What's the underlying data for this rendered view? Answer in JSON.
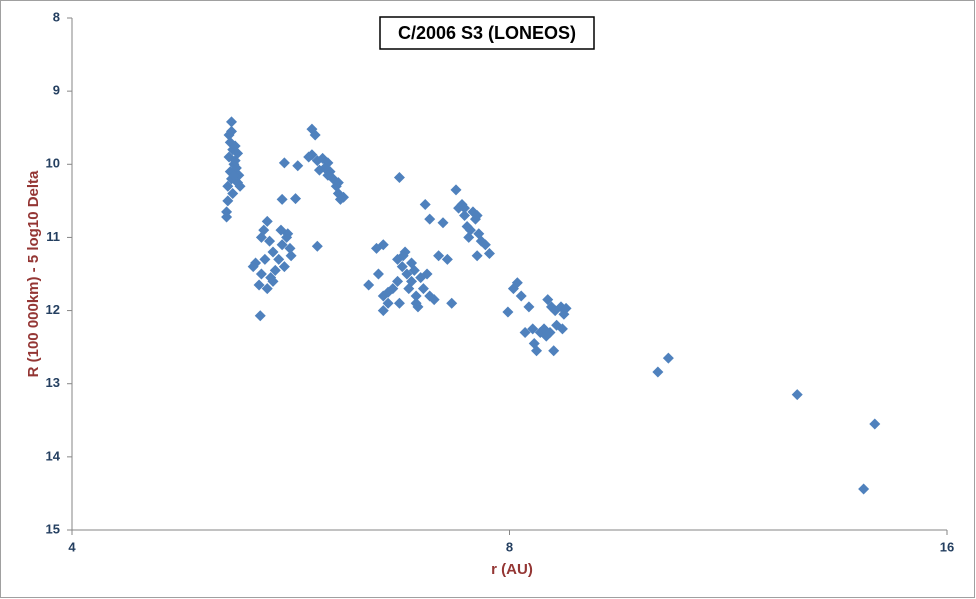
{
  "chart_data": {
    "type": "scatter",
    "title": "C/2006 S3 (LONEOS)",
    "x_label": "r (AU)",
    "y_label": "R (100 000km) - 5 log10 Delta",
    "xscale": "log",
    "xlim": [
      4,
      16
    ],
    "xticks": [
      4,
      8,
      16
    ],
    "ylim": [
      8,
      15
    ],
    "yticks": [
      8,
      9,
      10,
      11,
      12,
      13,
      14,
      15
    ],
    "y_inverted": true,
    "grid": false,
    "color": "#4f81bd",
    "x": [
      5.15,
      5.15,
      5.14,
      5.16,
      5.13,
      5.17,
      5.14,
      5.15,
      5.12,
      5.16,
      5.12,
      5.11,
      5.11,
      5.18,
      5.2,
      5.19,
      5.21,
      5.2,
      5.22,
      5.18,
      5.17,
      5.13,
      5.45,
      5.42,
      5.4,
      5.47,
      5.5,
      5.35,
      5.33,
      5.4,
      5.38,
      5.45,
      5.5,
      5.55,
      5.58,
      5.62,
      5.65,
      5.6,
      5.52,
      5.43,
      5.39,
      5.48,
      5.63,
      5.66,
      5.57,
      5.6,
      5.72,
      5.58,
      5.7,
      5.85,
      5.88,
      5.85,
      5.9,
      5.95,
      6.0,
      6.02,
      5.97,
      6.05,
      6.08,
      6.1,
      6.12,
      6.15,
      6.1,
      6.0,
      5.92,
      5.9,
      5.82,
      6.4,
      6.48,
      6.55,
      6.5,
      6.55,
      6.55,
      6.6,
      6.65,
      6.7,
      6.72,
      6.75,
      6.78,
      6.8,
      6.82,
      6.85,
      6.88,
      6.9,
      6.92,
      6.95,
      6.98,
      7.02,
      7.05,
      7.1,
      6.7,
      6.76,
      6.85,
      6.6,
      7.15,
      7.25,
      7.3,
      6.72,
      6.9,
      7.0,
      7.05,
      7.2,
      7.35,
      7.38,
      7.42,
      7.45,
      7.48,
      7.5,
      7.52,
      7.55,
      7.58,
      7.62,
      7.6,
      7.65,
      7.7,
      7.75,
      7.6,
      7.45,
      7.98,
      8.05,
      8.1,
      8.15,
      8.2,
      8.25,
      8.3,
      8.32,
      8.35,
      8.4,
      8.45,
      8.5,
      8.55,
      8.6,
      8.58,
      8.62,
      8.68,
      8.7,
      8.72,
      8.75,
      8.48,
      8.53,
      10.12,
      10.29,
      12.62,
      14.27,
      14.02
    ],
    "y": [
      9.42,
      9.55,
      9.7,
      9.8,
      9.9,
      10.0,
      10.1,
      10.2,
      10.3,
      10.4,
      10.5,
      10.65,
      10.72,
      9.75,
      9.85,
      10.05,
      10.15,
      10.25,
      10.3,
      9.95,
      10.15,
      9.6,
      10.78,
      10.9,
      11.0,
      11.05,
      11.2,
      11.35,
      11.4,
      11.5,
      11.65,
      11.7,
      11.6,
      11.3,
      11.1,
      11.0,
      11.15,
      11.4,
      11.45,
      11.3,
      12.07,
      11.55,
      10.95,
      11.25,
      10.9,
      9.98,
      10.02,
      10.48,
      10.47,
      9.52,
      9.6,
      9.87,
      9.95,
      9.92,
      9.98,
      10.1,
      10.05,
      10.2,
      10.3,
      10.4,
      10.48,
      10.45,
      10.25,
      10.15,
      10.08,
      11.12,
      9.9,
      11.65,
      11.15,
      11.1,
      11.5,
      11.8,
      12.0,
      11.9,
      11.7,
      11.6,
      11.9,
      11.4,
      11.2,
      11.5,
      11.7,
      11.6,
      11.45,
      11.8,
      11.95,
      11.55,
      11.7,
      11.5,
      11.8,
      11.85,
      11.3,
      11.25,
      11.35,
      11.75,
      11.25,
      11.3,
      11.9,
      10.18,
      11.9,
      10.55,
      10.75,
      10.8,
      10.35,
      10.6,
      10.55,
      10.7,
      10.85,
      11.0,
      10.9,
      10.65,
      10.75,
      10.95,
      11.25,
      11.05,
      11.1,
      11.22,
      10.7,
      10.6,
      12.02,
      11.7,
      11.62,
      11.8,
      12.3,
      11.95,
      12.25,
      12.45,
      12.55,
      12.3,
      12.25,
      11.85,
      11.95,
      12.0,
      12.55,
      12.2,
      11.95,
      12.25,
      12.05,
      11.97,
      12.35,
      12.3,
      12.84,
      12.65,
      13.15,
      13.55,
      14.44
    ]
  }
}
